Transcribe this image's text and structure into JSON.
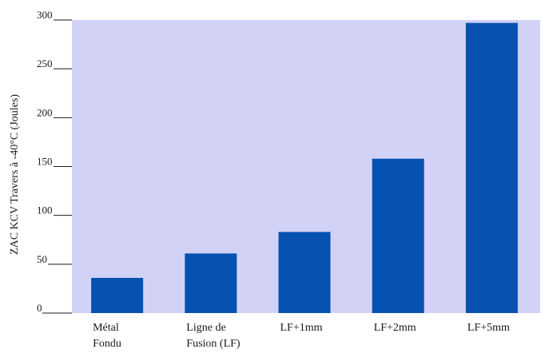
{
  "chart_data": {
    "type": "bar",
    "categories": [
      [
        "Métal",
        "Fondu"
      ],
      [
        "Ligne de",
        "Fusion (LF)"
      ],
      [
        "LF+1mm"
      ],
      [
        "LF+2mm"
      ],
      [
        "LF+5mm"
      ]
    ],
    "values": [
      36,
      61,
      83,
      158,
      297
    ],
    "title": "",
    "xlabel": "",
    "ylabel": "ZAC KCV Travers à -40°C  (Joules)",
    "ylim": [
      0,
      300
    ],
    "yticks": [
      0,
      50,
      100,
      150,
      200,
      250,
      300
    ],
    "grid": false,
    "colors": {
      "plot_background": "#d2d2f7",
      "bar": "#0752b0",
      "text": "#1a1a1a"
    }
  }
}
